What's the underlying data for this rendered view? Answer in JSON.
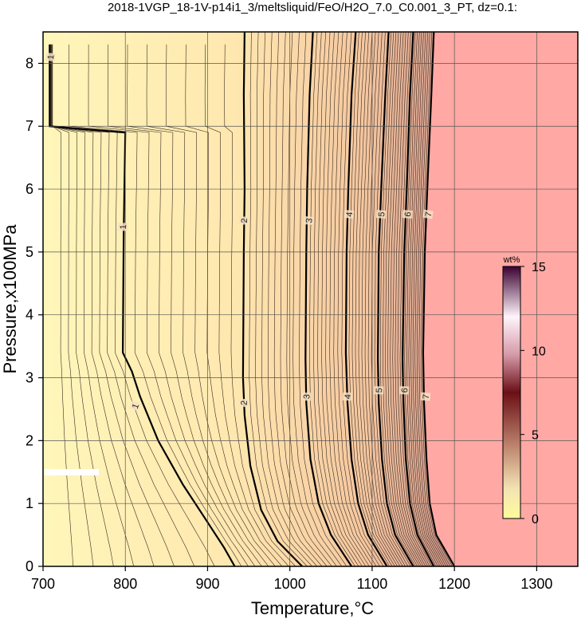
{
  "title": "2018-1VGP_18-1V-p14i1_3/meltsliquid/FeO/H2O_7.0_C0.001_3_PT, dz=0.1:",
  "chart_data": {
    "type": "heatmap",
    "title": "2018-1VGP_18-1V-p14i1_3/meltsliquid/FeO/H2O_7.0_C0.001_3_PT, dz=0.1:",
    "xlabel": "Temperature,°C",
    "ylabel": "Pressure,x100MPa",
    "xlim": [
      700,
      1350
    ],
    "ylim": [
      0,
      8.5
    ],
    "xticks": [
      700,
      800,
      900,
      1000,
      1100,
      1200,
      1300
    ],
    "yticks": [
      0,
      1,
      2,
      3,
      4,
      5,
      6,
      7,
      8
    ],
    "grid": true,
    "colorbar": {
      "unit": "wt%",
      "range": [
        0,
        15
      ],
      "ticks": [
        0,
        5,
        10,
        15
      ],
      "placement": "right-inside"
    },
    "out_of_range_color": "#ffa8a4",
    "labeled_contours": [
      {
        "level": 1,
        "points": [
          [
            708,
            8.3
          ],
          [
            708,
            7.0
          ],
          [
            800,
            6.9
          ],
          [
            798,
            5.3
          ],
          [
            797,
            3.4
          ],
          [
            808,
            3.1
          ],
          [
            818,
            2.7
          ],
          [
            840,
            2.0
          ],
          [
            870,
            1.3
          ],
          [
            900,
            0.7
          ],
          [
            920,
            0.3
          ],
          [
            933,
            0
          ]
        ]
      },
      {
        "level": 2,
        "points": [
          [
            945,
            8.5
          ],
          [
            944,
            7.5
          ],
          [
            945,
            6.0
          ],
          [
            944,
            5.0
          ],
          [
            943,
            3.0
          ],
          [
            945,
            2.4
          ],
          [
            952,
            1.6
          ],
          [
            965,
            0.9
          ],
          [
            985,
            0.4
          ],
          [
            1015,
            0
          ]
        ]
      },
      {
        "level": 3,
        "points": [
          [
            1028,
            8.5
          ],
          [
            1024,
            7.5
          ],
          [
            1021,
            6.0
          ],
          [
            1020,
            5.0
          ],
          [
            1019,
            3.3
          ],
          [
            1020,
            2.6
          ],
          [
            1025,
            1.7
          ],
          [
            1035,
            1.0
          ],
          [
            1050,
            0.5
          ],
          [
            1075,
            0
          ]
        ]
      },
      {
        "level": 4,
        "points": [
          [
            1080,
            8.5
          ],
          [
            1075,
            7.5
          ],
          [
            1071,
            6.0
          ],
          [
            1069,
            5.0
          ],
          [
            1068,
            3.4
          ],
          [
            1070,
            2.6
          ],
          [
            1075,
            1.7
          ],
          [
            1083,
            1.0
          ],
          [
            1095,
            0.5
          ],
          [
            1118,
            0
          ]
        ]
      },
      {
        "level": 5,
        "points": [
          [
            1120,
            8.5
          ],
          [
            1116,
            7.5
          ],
          [
            1111,
            6.0
          ],
          [
            1108,
            5.0
          ],
          [
            1107,
            3.3
          ],
          [
            1108,
            2.6
          ],
          [
            1112,
            1.7
          ],
          [
            1118,
            1.0
          ],
          [
            1128,
            0.5
          ],
          [
            1150,
            0
          ]
        ]
      },
      {
        "level": 6,
        "points": [
          [
            1150,
            8.5
          ],
          [
            1146,
            7.5
          ],
          [
            1142,
            6.0
          ],
          [
            1139,
            5.0
          ],
          [
            1137,
            3.3
          ],
          [
            1138,
            2.6
          ],
          [
            1141,
            1.7
          ],
          [
            1146,
            1.0
          ],
          [
            1155,
            0.5
          ],
          [
            1175,
            0
          ]
        ]
      },
      {
        "level": 7,
        "points": [
          [
            1175,
            8.5
          ],
          [
            1172,
            7.5
          ],
          [
            1167,
            6.0
          ],
          [
            1164,
            5.0
          ],
          [
            1162,
            3.4
          ],
          [
            1163,
            2.6
          ],
          [
            1166,
            1.7
          ],
          [
            1170,
            1.0
          ],
          [
            1178,
            0.5
          ],
          [
            1200,
            0
          ]
        ]
      }
    ],
    "contour_label_marks": [
      {
        "text": "1",
        "x": 797,
        "y": 5.4,
        "rot": -88
      },
      {
        "text": "1",
        "x": 812,
        "y": 2.55,
        "rot": -70
      },
      {
        "text": "2",
        "x": 944,
        "y": 5.5,
        "rot": -90
      },
      {
        "text": "2",
        "x": 944,
        "y": 2.6,
        "rot": -88
      },
      {
        "text": "3",
        "x": 1023,
        "y": 5.5,
        "rot": -85
      },
      {
        "text": "3",
        "x": 1020,
        "y": 2.7,
        "rot": -88
      },
      {
        "text": "4",
        "x": 1072,
        "y": 5.6,
        "rot": -85
      },
      {
        "text": "4",
        "x": 1070,
        "y": 2.7,
        "rot": -88
      },
      {
        "text": "5",
        "x": 1111,
        "y": 5.6,
        "rot": -85
      },
      {
        "text": "5",
        "x": 1108,
        "y": 2.8,
        "rot": -88
      },
      {
        "text": "6",
        "x": 1143,
        "y": 5.6,
        "rot": -85
      },
      {
        "text": "6",
        "x": 1139,
        "y": 2.8,
        "rot": -88
      },
      {
        "text": "7",
        "x": 1168,
        "y": 5.6,
        "rot": -80
      },
      {
        "text": "7",
        "x": 1165,
        "y": 2.7,
        "rot": -85
      },
      {
        "text": "1",
        "x": 709,
        "y": 8.1,
        "rot": -85
      }
    ]
  }
}
